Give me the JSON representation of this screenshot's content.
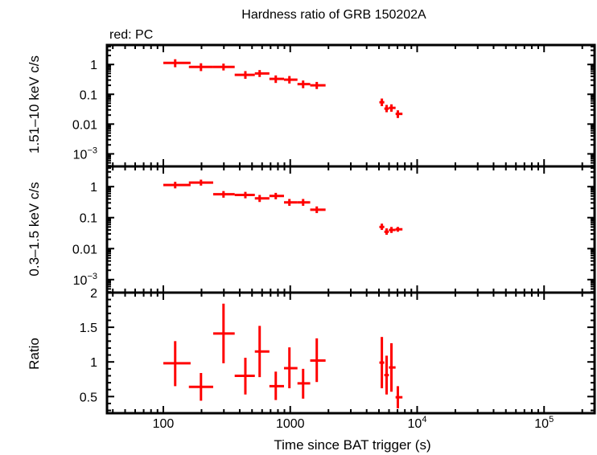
{
  "chart_data": {
    "type": "scatter",
    "title": "Hardness ratio of GRB 150202A",
    "legend_note": "red: PC",
    "xlabel": "Time since BAT trigger (s)",
    "xscale": "log",
    "xlim": [
      36,
      250000
    ],
    "xticks": [
      {
        "value": 100,
        "label": "100"
      },
      {
        "value": 1000,
        "label": "1000"
      },
      {
        "value": 10000,
        "label": "10",
        "sup": "4"
      },
      {
        "value": 100000,
        "label": "10",
        "sup": "5"
      }
    ],
    "series_color": "#ff0000",
    "panels": [
      {
        "id": "hard",
        "ylabel": "1.51–10 keV c/s",
        "yscale": "log",
        "ylim": [
          0.00038,
          4.5
        ],
        "yticks": [
          {
            "value": 1,
            "label": "1"
          },
          {
            "value": 0.1,
            "label": "0.1"
          },
          {
            "value": 0.01,
            "label": "0.01"
          },
          {
            "value": 0.001,
            "label": "10",
            "sup": "−3"
          }
        ],
        "points": [
          {
            "x": 124,
            "xlo": 100,
            "xhi": 164,
            "y": 1.13,
            "ylo": 0.81,
            "yhi": 1.5
          },
          {
            "x": 198,
            "xlo": 159,
            "xhi": 247,
            "y": 0.83,
            "ylo": 0.6,
            "yhi": 1.1
          },
          {
            "x": 298,
            "xlo": 247,
            "xhi": 365,
            "y": 0.83,
            "ylo": 0.63,
            "yhi": 1.07
          },
          {
            "x": 443,
            "xlo": 365,
            "xhi": 526,
            "y": 0.45,
            "ylo": 0.33,
            "yhi": 0.6
          },
          {
            "x": 574,
            "xlo": 526,
            "xhi": 685,
            "y": 0.5,
            "ylo": 0.38,
            "yhi": 0.65
          },
          {
            "x": 769,
            "xlo": 685,
            "xhi": 893,
            "y": 0.33,
            "ylo": 0.24,
            "yhi": 0.43
          },
          {
            "x": 985,
            "xlo": 893,
            "xhi": 1140,
            "y": 0.31,
            "ylo": 0.23,
            "yhi": 0.41
          },
          {
            "x": 1263,
            "xlo": 1140,
            "xhi": 1436,
            "y": 0.22,
            "ylo": 0.16,
            "yhi": 0.29
          },
          {
            "x": 1618,
            "xlo": 1436,
            "xhi": 1898,
            "y": 0.2,
            "ylo": 0.15,
            "yhi": 0.26
          },
          {
            "x": 5270,
            "xlo": 5036,
            "xhi": 5510,
            "y": 0.054,
            "ylo": 0.04,
            "yhi": 0.072
          },
          {
            "x": 5745,
            "xlo": 5510,
            "xhi": 5987,
            "y": 0.033,
            "ylo": 0.025,
            "yhi": 0.044
          },
          {
            "x": 6270,
            "xlo": 5987,
            "xhi": 6761,
            "y": 0.035,
            "ylo": 0.026,
            "yhi": 0.046
          },
          {
            "x": 7043,
            "xlo": 6761,
            "xhi": 7659,
            "y": 0.022,
            "ylo": 0.016,
            "yhi": 0.029
          }
        ]
      },
      {
        "id": "soft",
        "ylabel": "0.3–1.5 keV c/s",
        "yscale": "log",
        "ylim": [
          0.00038,
          4.5
        ],
        "yticks": [
          {
            "value": 1,
            "label": "1"
          },
          {
            "value": 0.1,
            "label": "0.1"
          },
          {
            "value": 0.01,
            "label": "0.01"
          },
          {
            "value": 0.001,
            "label": "10",
            "sup": "−3"
          }
        ],
        "points": [
          {
            "x": 124,
            "xlo": 100,
            "xhi": 164,
            "y": 1.13,
            "ylo": 0.88,
            "yhi": 1.43
          },
          {
            "x": 198,
            "xlo": 159,
            "xhi": 247,
            "y": 1.35,
            "ylo": 1.08,
            "yhi": 1.68
          },
          {
            "x": 298,
            "xlo": 247,
            "xhi": 365,
            "y": 0.57,
            "ylo": 0.44,
            "yhi": 0.72
          },
          {
            "x": 443,
            "xlo": 365,
            "xhi": 526,
            "y": 0.54,
            "ylo": 0.42,
            "yhi": 0.68
          },
          {
            "x": 574,
            "xlo": 526,
            "xhi": 685,
            "y": 0.42,
            "ylo": 0.32,
            "yhi": 0.54
          },
          {
            "x": 769,
            "xlo": 685,
            "xhi": 893,
            "y": 0.5,
            "ylo": 0.39,
            "yhi": 0.63
          },
          {
            "x": 985,
            "xlo": 893,
            "xhi": 1140,
            "y": 0.31,
            "ylo": 0.24,
            "yhi": 0.4
          },
          {
            "x": 1263,
            "xlo": 1140,
            "xhi": 1436,
            "y": 0.31,
            "ylo": 0.24,
            "yhi": 0.4
          },
          {
            "x": 1618,
            "xlo": 1436,
            "xhi": 1898,
            "y": 0.18,
            "ylo": 0.14,
            "yhi": 0.23
          },
          {
            "x": 5270,
            "xlo": 5036,
            "xhi": 5510,
            "y": 0.05,
            "ylo": 0.04,
            "yhi": 0.064
          },
          {
            "x": 5745,
            "xlo": 5510,
            "xhi": 5987,
            "y": 0.035,
            "ylo": 0.028,
            "yhi": 0.045
          },
          {
            "x": 6270,
            "xlo": 5987,
            "xhi": 6761,
            "y": 0.04,
            "ylo": 0.032,
            "yhi": 0.05
          },
          {
            "x": 7043,
            "xlo": 6761,
            "xhi": 7659,
            "y": 0.042,
            "ylo": 0.035,
            "yhi": 0.05
          }
        ]
      },
      {
        "id": "ratio",
        "ylabel": "Ratio",
        "yscale": "linear",
        "ylim": [
          0.26,
          2
        ],
        "yticks": [
          {
            "value": 2,
            "label": "2"
          },
          {
            "value": 1.5,
            "label": "1.5"
          },
          {
            "value": 1,
            "label": "1"
          },
          {
            "value": 0.5,
            "label": "0.5"
          }
        ],
        "points": [
          {
            "x": 124,
            "xlo": 100,
            "xhi": 164,
            "y": 0.98,
            "ylo": 0.65,
            "yhi": 1.3
          },
          {
            "x": 198,
            "xlo": 159,
            "xhi": 247,
            "y": 0.64,
            "ylo": 0.44,
            "yhi": 0.84
          },
          {
            "x": 298,
            "xlo": 247,
            "xhi": 365,
            "y": 1.41,
            "ylo": 0.98,
            "yhi": 1.84
          },
          {
            "x": 443,
            "xlo": 365,
            "xhi": 526,
            "y": 0.8,
            "ylo": 0.53,
            "yhi": 1.06
          },
          {
            "x": 574,
            "xlo": 526,
            "xhi": 685,
            "y": 1.15,
            "ylo": 0.78,
            "yhi": 1.52
          },
          {
            "x": 769,
            "xlo": 685,
            "xhi": 893,
            "y": 0.65,
            "ylo": 0.45,
            "yhi": 0.86
          },
          {
            "x": 985,
            "xlo": 893,
            "xhi": 1140,
            "y": 0.91,
            "ylo": 0.62,
            "yhi": 1.21
          },
          {
            "x": 1263,
            "xlo": 1140,
            "xhi": 1436,
            "y": 0.69,
            "ylo": 0.47,
            "yhi": 0.9
          },
          {
            "x": 1618,
            "xlo": 1436,
            "xhi": 1898,
            "y": 1.02,
            "ylo": 0.71,
            "yhi": 1.34
          },
          {
            "x": 5270,
            "xlo": 5036,
            "xhi": 5510,
            "y": 0.99,
            "ylo": 0.62,
            "yhi": 1.36
          },
          {
            "x": 5745,
            "xlo": 5510,
            "xhi": 5987,
            "y": 0.81,
            "ylo": 0.53,
            "yhi": 1.09
          },
          {
            "x": 6270,
            "xlo": 5987,
            "xhi": 6761,
            "y": 0.92,
            "ylo": 0.57,
            "yhi": 1.27
          },
          {
            "x": 7043,
            "xlo": 6761,
            "xhi": 7659,
            "y": 0.49,
            "ylo": 0.33,
            "yhi": 0.65
          }
        ]
      }
    ]
  }
}
